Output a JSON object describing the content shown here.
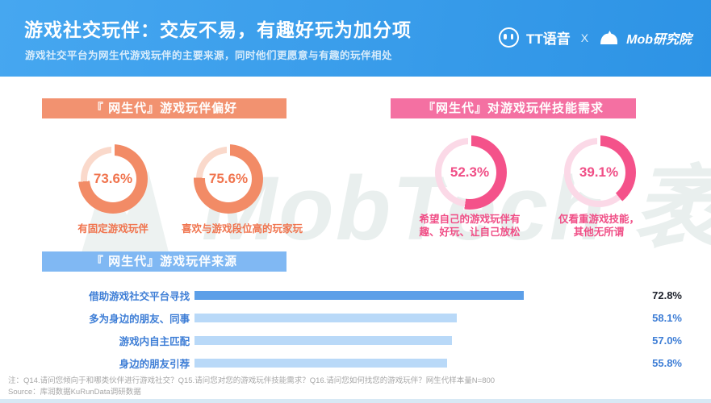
{
  "header": {
    "title": "游戏社交玩伴：交友不易，有趣好玩为加分项",
    "subtitle": "游戏社交平台为网生代游戏玩伴的主要来源，同时他们更愿意与有趣的玩伴相处",
    "brand_left": "TT语音",
    "brand_separator": "X",
    "brand_right": "Mob研究院"
  },
  "watermark_text": "MobTech 袤博",
  "sections": {
    "preference": {
      "banner": "『 网生代』游戏玩伴偏好",
      "donuts": [
        {
          "display": "73.6%",
          "value": 73.6,
          "label": "有固定游戏玩伴"
        },
        {
          "display": "75.6%",
          "value": 75.6,
          "label": "喜欢与游戏段位高的玩家玩"
        }
      ]
    },
    "skill": {
      "banner": "『网生代』对游戏玩伴技能需求",
      "donuts": [
        {
          "display": "52.3%",
          "value": 52.3,
          "label": "希望自己的游戏玩伴有趣、好玩、让自己放松"
        },
        {
          "display": "39.1%",
          "value": 39.1,
          "label": "仅看重游戏技能，其他无所谓"
        }
      ]
    },
    "source": {
      "banner": "『 网生代』游戏玩伴来源",
      "bars": [
        {
          "label": "借助游戏社交平台寻找",
          "display": "72.8%",
          "value": 72.8
        },
        {
          "label": "多为身边的朋友、同事",
          "display": "58.1%",
          "value": 58.1
        },
        {
          "label": "游戏内自主匹配",
          "display": "57.0%",
          "value": 57.0
        },
        {
          "label": "身边的朋友引荐",
          "display": "55.8%",
          "value": 55.8
        }
      ]
    }
  },
  "footer": {
    "note": "注：Q14.请问您倾向于和哪类伙伴进行游戏社交？Q15.请问您对您的游戏玩伴技能需求？Q16.请问您如何找您的游戏玩伴？网生代样本量N=800",
    "source": "Source：库润数据KuRunData调研数据"
  },
  "colors": {
    "header_from": "#46A7F0",
    "header_to": "#2D93E5",
    "banner_orange": "#F29270",
    "orange": "#F28B66",
    "orange_light": "#FAD9CB",
    "orange_text": "#F0744E",
    "banner_pink": "#F470A2",
    "pink": "#F4528A",
    "pink_light": "#FBD9E7",
    "pink_text": "#F04E86",
    "banner_blue": "#80B8F3",
    "bar_dark": "#5C9FE8",
    "bar_light": "#B9D9F8",
    "blue_text": "#3E7ED6",
    "dark_text": "#20242E",
    "footer_text": "#A6A6A6",
    "watermark": "#E9EFEE",
    "strip": "#D8E9F5"
  },
  "chart_data": [
    {
      "type": "pie",
      "variant": "donut-gauges",
      "title": "『 网生代』游戏玩伴偏好",
      "unit": "%",
      "series": [
        {
          "name": "有固定游戏玩伴",
          "values": [
            73.6
          ]
        },
        {
          "name": "喜欢与游戏段位高的玩家玩",
          "values": [
            75.6
          ]
        }
      ]
    },
    {
      "type": "pie",
      "variant": "donut-gauges",
      "title": "『网生代』对游戏玩伴技能需求",
      "unit": "%",
      "series": [
        {
          "name": "希望自己的游戏玩伴有趣、好玩、让自己放松",
          "values": [
            52.3
          ]
        },
        {
          "name": "仅看重游戏技能，其他无所谓",
          "values": [
            39.1
          ]
        }
      ]
    },
    {
      "type": "bar",
      "orientation": "horizontal",
      "title": "『 网生代』游戏玩伴来源",
      "categories": [
        "借助游戏社交平台寻找",
        "多为身边的朋友、同事",
        "游戏内自主匹配",
        "身边的朋友引荐"
      ],
      "values": [
        72.8,
        58.1,
        57.0,
        55.8
      ],
      "unit": "%",
      "xlim": [
        0,
        100
      ],
      "grid": false,
      "value_labels": true
    }
  ]
}
